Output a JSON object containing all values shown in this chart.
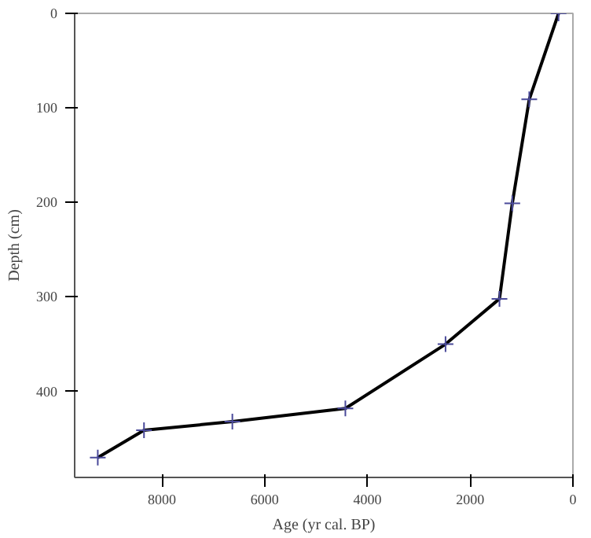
{
  "chart_data": {
    "type": "line",
    "xlabel": "Age (yr cal. BP)",
    "ylabel": "Depth (cm)",
    "x": [
      280,
      850,
      1180,
      1430,
      2480,
      4430,
      6630,
      8350,
      9250
    ],
    "series": [
      {
        "color": "#000000",
        "values": [
          0,
          91,
          201,
          302,
          350,
          418,
          432,
          441,
          470
        ]
      }
    ],
    "xlim": [
      9700,
      0
    ],
    "ylim": [
      491,
      0
    ],
    "xticks": [
      8000,
      6000,
      4000,
      2000,
      0
    ],
    "yticks": [
      0,
      100,
      200,
      300,
      400
    ],
    "grid": false,
    "marker": "cross",
    "line_style": "solid"
  }
}
